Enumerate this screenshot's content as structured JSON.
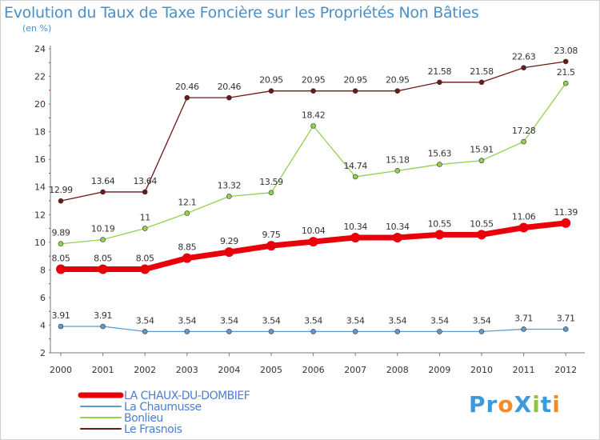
{
  "title": "Evolution du Taux de Taxe Foncière sur les Propriétés Non Bâties",
  "unit_label": "(en %)",
  "logo": {
    "text": "ProXiti",
    "letters": [
      {
        "ch": "P",
        "color": "#3b9ad9"
      },
      {
        "ch": "r",
        "color": "#3b9ad9"
      },
      {
        "ch": "o",
        "color": "#f28c28"
      },
      {
        "ch": "X",
        "color": "#3b9ad9"
      },
      {
        "ch": "i",
        "color": "#8cc63f"
      },
      {
        "ch": "t",
        "color": "#3b9ad9"
      },
      {
        "ch": "i",
        "color": "#f28c28"
      }
    ]
  },
  "chart_data": {
    "type": "line",
    "title": "Evolution du Taux de Taxe Foncière sur les Propriétés Non Bâties",
    "ylabel": "(en %)",
    "xlabel": "",
    "x": [
      "2000",
      "2001",
      "2002",
      "2003",
      "2004",
      "2005",
      "2006",
      "2007",
      "2008",
      "2009",
      "2010",
      "2011",
      "2012"
    ],
    "ylim": [
      2,
      24
    ],
    "yticks": [
      2,
      4,
      6,
      8,
      10,
      12,
      14,
      16,
      18,
      20,
      22,
      24
    ],
    "grid": false,
    "legend_position": "bottom-left",
    "series": [
      {
        "name": "LA CHAUX-DU-DOMBIEF",
        "color": "#e8000b",
        "emphasis": true,
        "values": [
          8.05,
          8.05,
          8.05,
          8.85,
          9.29,
          9.75,
          10.04,
          10.34,
          10.34,
          10.55,
          10.55,
          11.06,
          11.39
        ],
        "labels": [
          "8.05",
          "8.05",
          "8.05",
          "8.85",
          "9.29",
          "9.75",
          "10.04",
          "10.34",
          "10.34",
          "10.55",
          "10.55",
          "11.06",
          "11.39"
        ]
      },
      {
        "name": "La Chaumusse",
        "color": "#5b9bd5",
        "emphasis": false,
        "values": [
          3.91,
          3.91,
          3.54,
          3.54,
          3.54,
          3.54,
          3.54,
          3.54,
          3.54,
          3.54,
          3.54,
          3.71,
          3.71
        ],
        "labels": [
          "3.91",
          "3.91",
          "3.54",
          "3.54",
          "3.54",
          "3.54",
          "3.54",
          "3.54",
          "3.54",
          "3.54",
          "3.54",
          "3.71",
          "3.71"
        ]
      },
      {
        "name": "Bonlieu",
        "color": "#92d050",
        "emphasis": false,
        "values": [
          9.89,
          10.19,
          11,
          12.1,
          13.32,
          13.59,
          18.42,
          14.74,
          15.18,
          15.63,
          15.91,
          17.28,
          21.5
        ],
        "labels": [
          "9.89",
          "10.19",
          "11",
          "12.1",
          "13.32",
          "13.59",
          "18.42",
          "14.74",
          "15.18",
          "15.63",
          "15.91",
          "17.28",
          "21.5"
        ]
      },
      {
        "name": "Le Frasnois",
        "color": "#6b1a1a",
        "emphasis": false,
        "values": [
          12.99,
          13.64,
          13.64,
          20.46,
          20.46,
          20.95,
          20.95,
          20.95,
          20.95,
          21.58,
          21.58,
          22.63,
          23.08
        ],
        "labels": [
          "12.99",
          "13.64",
          "13.64",
          "20.46",
          "20.46",
          "20.95",
          "20.95",
          "20.95",
          "20.95",
          "21.58",
          "21.58",
          "22.63",
          "23.08"
        ]
      }
    ]
  }
}
